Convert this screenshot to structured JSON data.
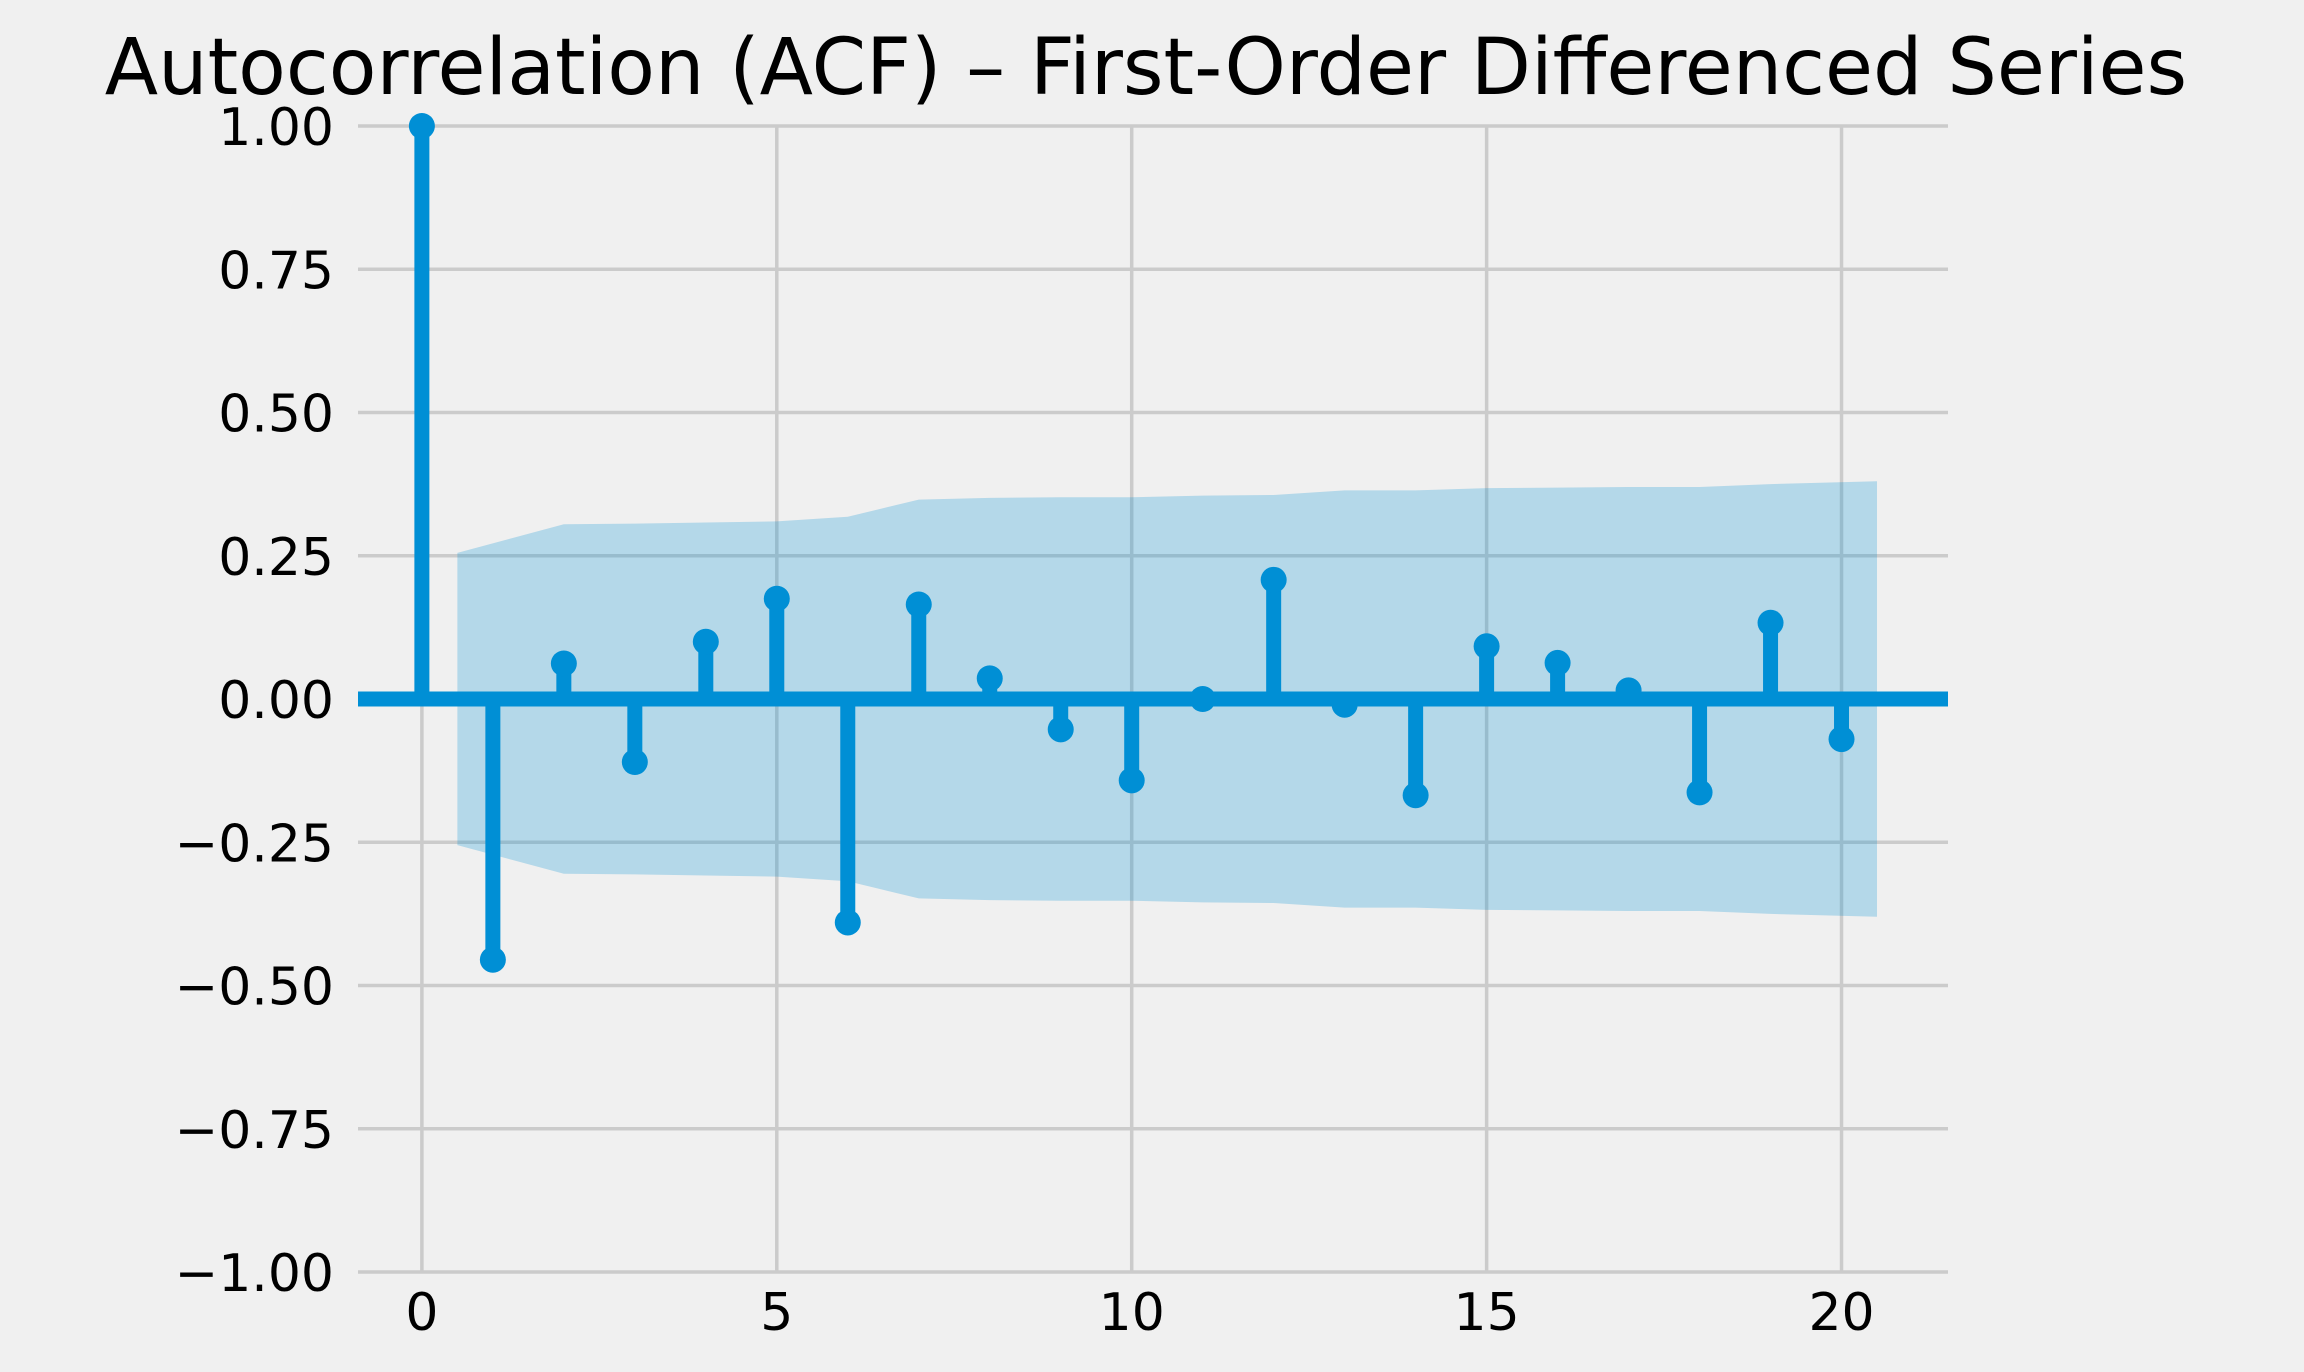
{
  "chart_data": {
    "type": "stem",
    "title": "Autocorrelation (ACF) – First-Order Differenced Series",
    "xlabel": "",
    "ylabel": "",
    "xlim": [
      -0.9,
      21.5
    ],
    "ylim": [
      -1.0,
      1.0
    ],
    "x_ticks": [
      0,
      5,
      10,
      15,
      20
    ],
    "y_ticks": [
      1.0,
      0.75,
      0.5,
      0.25,
      0.0,
      -0.25,
      -0.5,
      -0.75,
      -1.0
    ],
    "x_tick_labels": [
      "0",
      "5",
      "10",
      "15",
      "20"
    ],
    "y_tick_labels": [
      "1.00",
      "0.75",
      "0.50",
      "0.25",
      "0.00",
      "−0.25",
      "−0.50",
      "−0.75",
      "−1.00"
    ],
    "grid": true,
    "colors": {
      "stem": "#008fd5",
      "band": "#b3d6ea",
      "background": "#f0f0f0",
      "grid": "#cbcbcb"
    },
    "lags": [
      0,
      1,
      2,
      3,
      4,
      5,
      6,
      7,
      8,
      9,
      10,
      11,
      12,
      13,
      14,
      15,
      16,
      17,
      18,
      19,
      20
    ],
    "acf": [
      1.0,
      -0.455,
      0.062,
      -0.11,
      0.1,
      0.175,
      -0.39,
      0.165,
      0.036,
      -0.053,
      -0.142,
      0.0,
      0.208,
      -0.01,
      -0.168,
      0.092,
      0.063,
      0.015,
      -0.163,
      0.133,
      -0.07
    ],
    "confidence_band": {
      "x": [
        0.5,
        2,
        3,
        4,
        5,
        6,
        7,
        8,
        9,
        10,
        11,
        12,
        13,
        14,
        15,
        16,
        17,
        18,
        19,
        20.5
      ],
      "upper": [
        0.255,
        0.305,
        0.306,
        0.308,
        0.31,
        0.318,
        0.348,
        0.351,
        0.352,
        0.352,
        0.355,
        0.356,
        0.364,
        0.364,
        0.368,
        0.369,
        0.37,
        0.37,
        0.375,
        0.38
      ]
    }
  }
}
